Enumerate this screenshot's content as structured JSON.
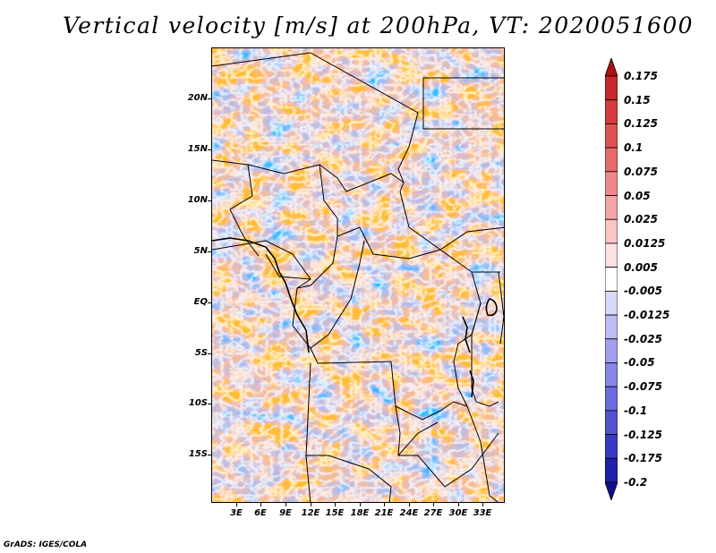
{
  "title": "Vertical velocity [m/s] at 200hPa, VT: 2020051600",
  "footer": "GrADS: IGES/COLA",
  "lat_labels": [
    "20N",
    "15N",
    "10N",
    "5N",
    "EQ",
    "5S",
    "10S",
    "15S"
  ],
  "lon_labels": [
    "3E",
    "6E",
    "9E",
    "12E",
    "15E",
    "18E",
    "21E",
    "24E",
    "27E",
    "30E",
    "33E"
  ],
  "colorbar": {
    "labels": [
      "0.175",
      "0.15",
      "0.125",
      "0.1",
      "0.075",
      "0.05",
      "0.025",
      "0.0125",
      "0.005",
      "-0.005",
      "-0.0125",
      "-0.025",
      "-0.05",
      "-0.075",
      "-0.1",
      "-0.125",
      "-0.175",
      "-0.2"
    ],
    "colors": [
      "#b01010",
      "#c42828",
      "#d63c3c",
      "#e05252",
      "#e86a6a",
      "#ee8888",
      "#f4a6a6",
      "#f8c4c4",
      "#fce0e0",
      "#ffffff",
      "#d8d8f8",
      "#bcbcf4",
      "#a0a0ee",
      "#8686e6",
      "#6c6cdc",
      "#5252d0",
      "#3838c0",
      "#2020a8",
      "#10108c"
    ]
  },
  "field": {
    "variable": "Vertical velocity",
    "units": "m/s",
    "level": "200hPa",
    "valid_time": "2020051600"
  }
}
